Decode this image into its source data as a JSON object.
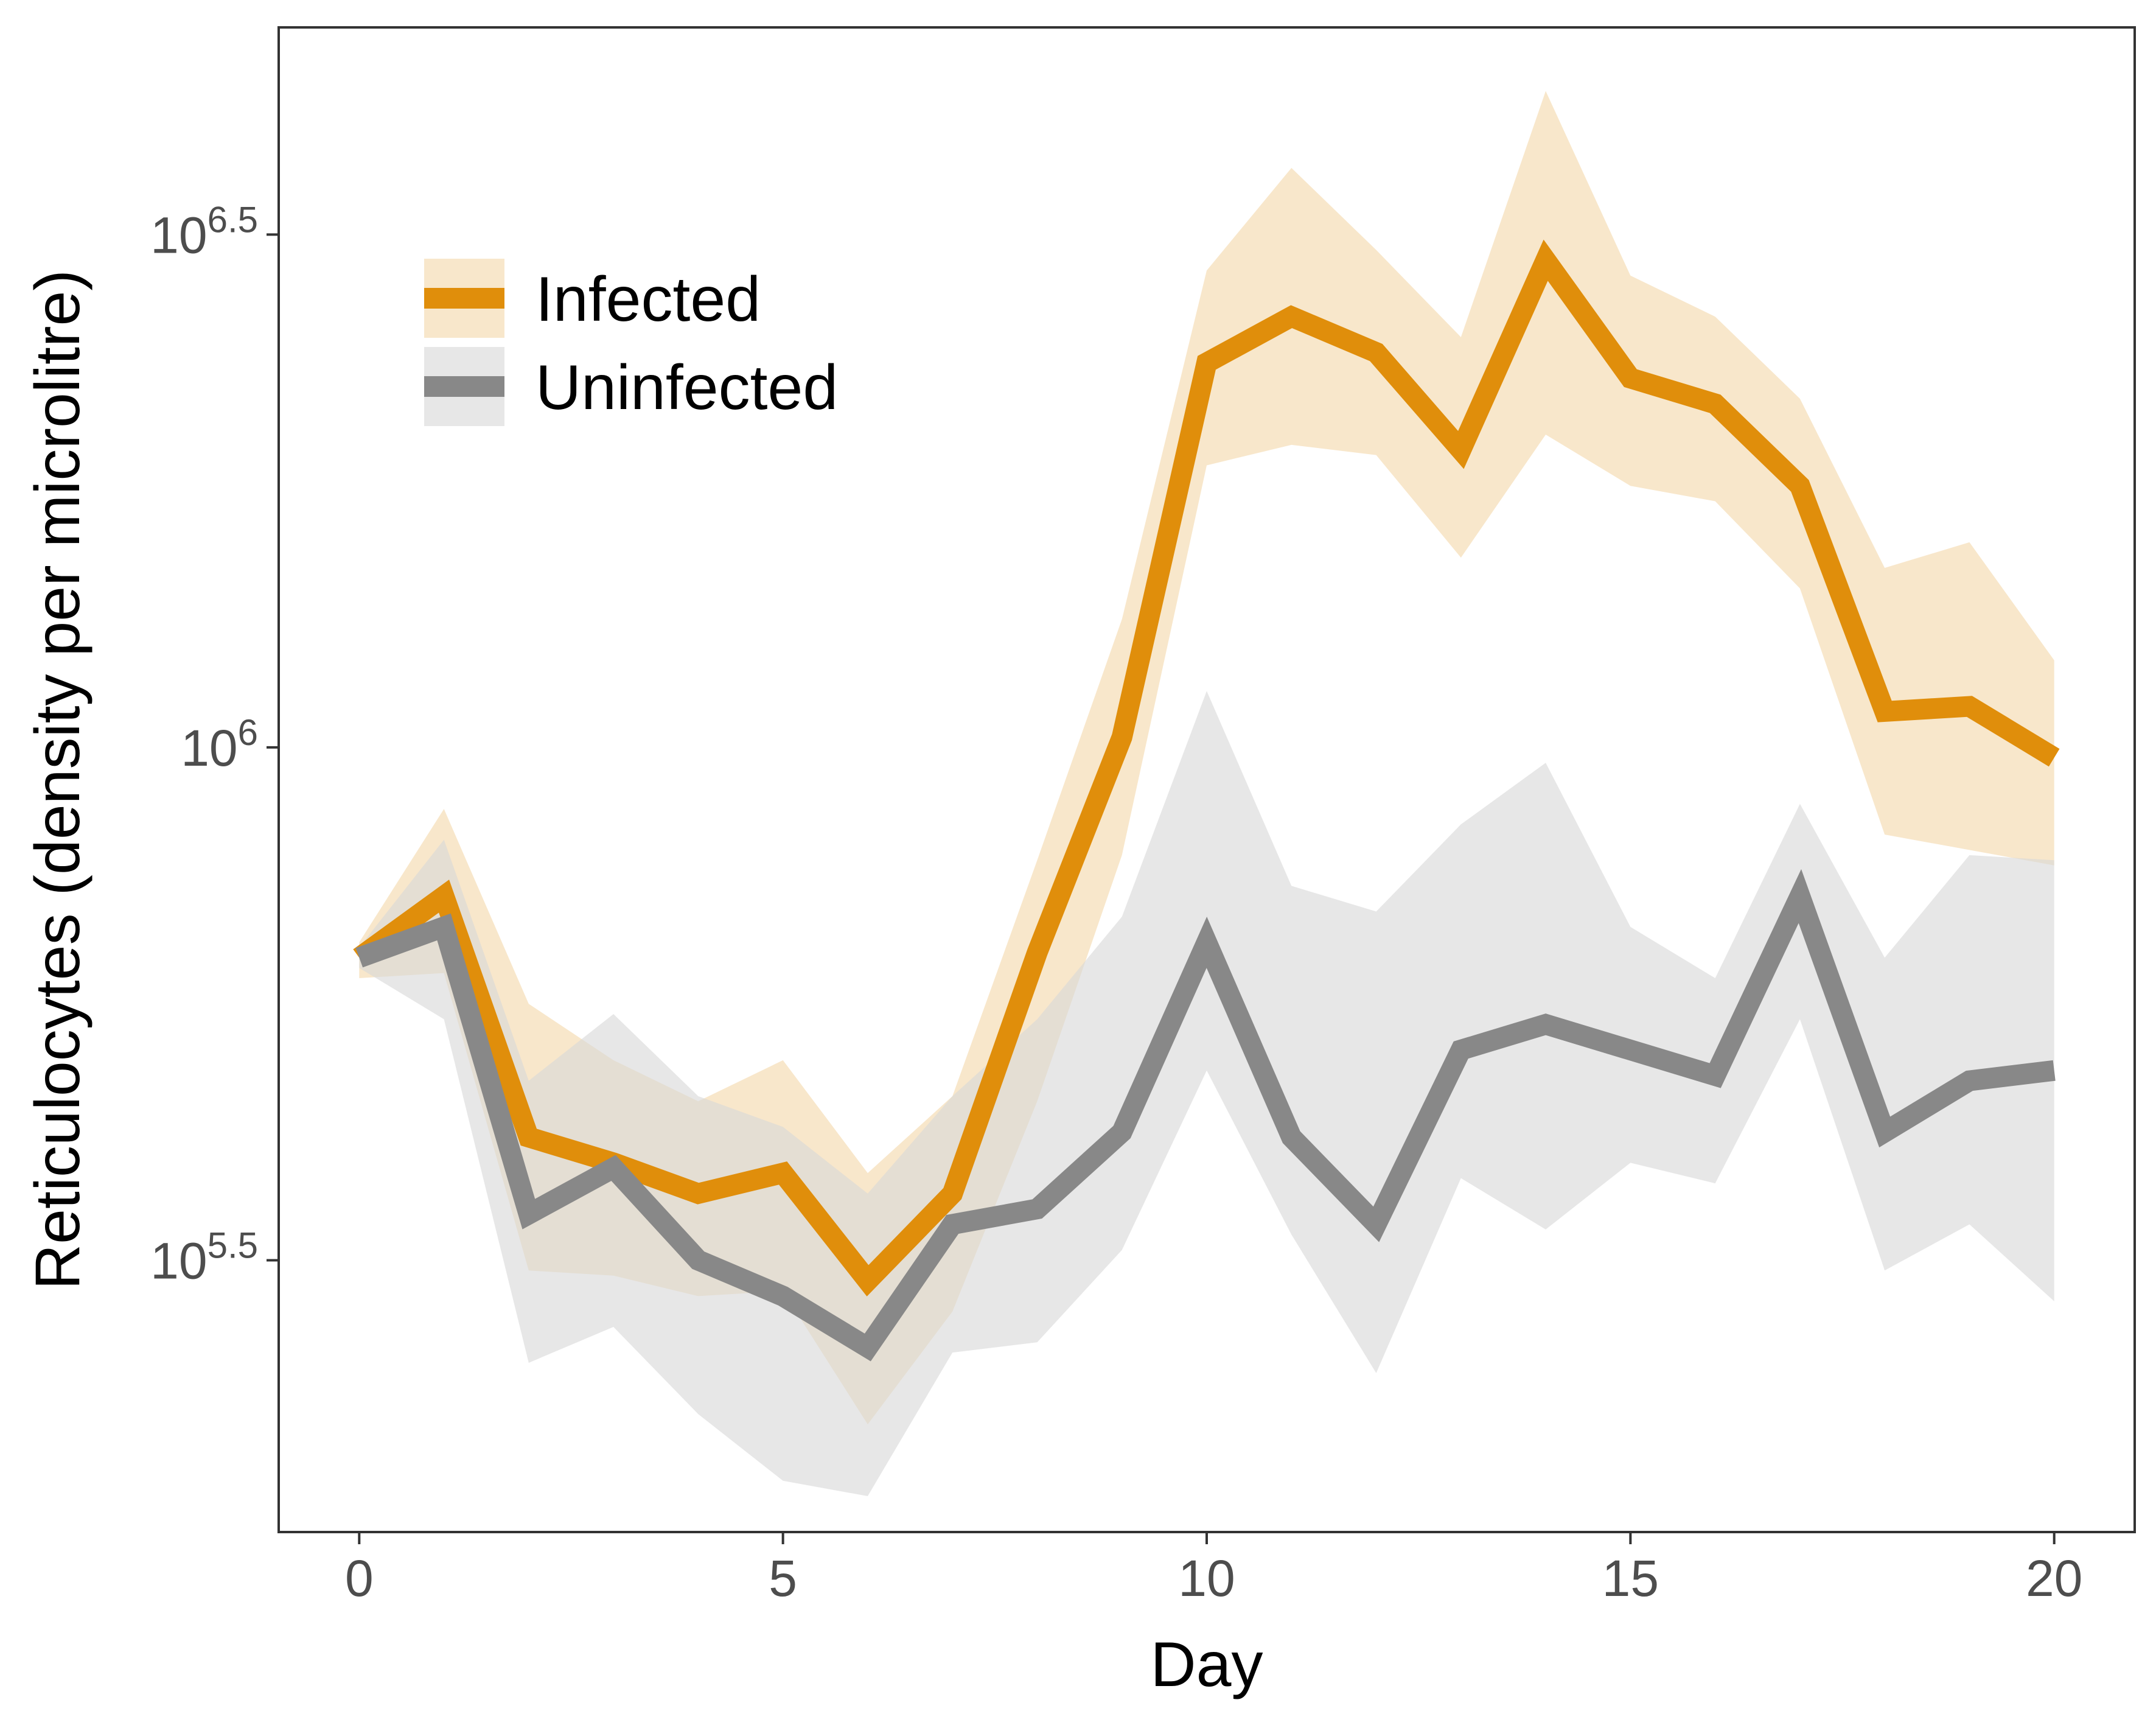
{
  "chart_data": {
    "type": "line",
    "xlabel": "Day",
    "ylabel": "Reticulocytes (density per microlitre)",
    "y_scale": "log10",
    "xlim": [
      -0.95,
      20.95
    ],
    "ylim": [
      5.235,
      6.702
    ],
    "x_ticks": [
      {
        "value": 0,
        "label": "0"
      },
      {
        "value": 5,
        "label": "5"
      },
      {
        "value": 10,
        "label": "10"
      },
      {
        "value": 15,
        "label": "15"
      },
      {
        "value": 20,
        "label": "20"
      }
    ],
    "y_ticks": [
      {
        "value": 5.5,
        "base": "10",
        "exp": "5.5"
      },
      {
        "value": 6.0,
        "base": "10",
        "exp": "6"
      },
      {
        "value": 6.5,
        "base": "10",
        "exp": "6.5"
      }
    ],
    "legend": {
      "position": "top-left"
    },
    "grid": false,
    "x": [
      0,
      1,
      2,
      3,
      4,
      5,
      6,
      7,
      8,
      9,
      10,
      11,
      12,
      13,
      14,
      15,
      16,
      17,
      18,
      19,
      20
    ],
    "series": [
      {
        "name": "Uninfected",
        "color": "#888888",
        "ribbon_color": "#d9d9d9",
        "values": [
          5.795,
          5.825,
          5.545,
          5.59,
          5.5,
          5.465,
          5.415,
          5.535,
          5.55,
          5.625,
          5.81,
          5.62,
          5.535,
          5.705,
          5.73,
          5.705,
          5.68,
          5.855,
          5.625,
          5.675,
          5.685
        ],
        "lower": [
          5.785,
          5.735,
          5.4,
          5.435,
          5.35,
          5.285,
          5.27,
          5.41,
          5.42,
          5.51,
          5.685,
          5.525,
          5.39,
          5.58,
          5.53,
          5.595,
          5.575,
          5.735,
          5.49,
          5.535,
          5.46
        ],
        "upper": [
          5.805,
          5.91,
          5.675,
          5.74,
          5.66,
          5.63,
          5.565,
          5.66,
          5.735,
          5.835,
          6.055,
          5.865,
          5.84,
          5.925,
          5.985,
          5.825,
          5.775,
          5.945,
          5.795,
          5.895,
          5.89
        ]
      },
      {
        "name": "Infected",
        "color": "#e08e0b",
        "ribbon_color": "#f5dfb9",
        "values": [
          5.795,
          5.855,
          5.62,
          5.595,
          5.565,
          5.585,
          5.48,
          5.565,
          5.8,
          6.01,
          6.375,
          6.42,
          6.385,
          6.29,
          6.475,
          6.36,
          6.335,
          6.255,
          6.035,
          6.04,
          5.99
        ],
        "lower": [
          5.775,
          5.78,
          5.49,
          5.485,
          5.465,
          5.47,
          5.34,
          5.45,
          5.655,
          5.895,
          6.275,
          6.295,
          6.285,
          6.185,
          6.305,
          6.255,
          6.24,
          6.155,
          5.915,
          5.9,
          5.885
        ],
        "upper": [
          5.81,
          5.94,
          5.75,
          5.695,
          5.655,
          5.695,
          5.585,
          5.66,
          5.89,
          6.125,
          6.465,
          6.565,
          6.485,
          6.4,
          6.64,
          6.46,
          6.42,
          6.34,
          6.175,
          6.2,
          6.085
        ]
      }
    ]
  }
}
